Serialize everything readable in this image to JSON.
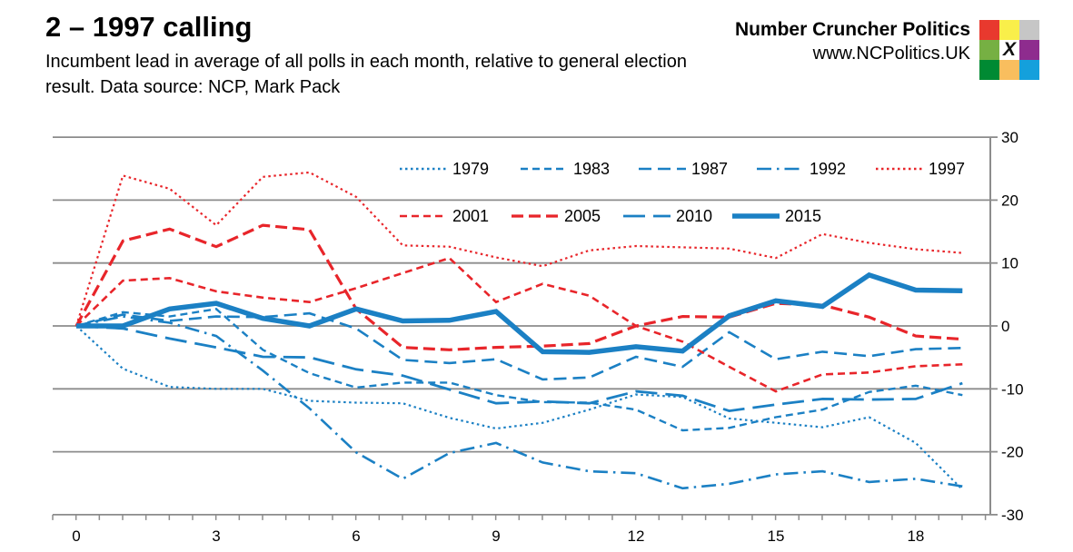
{
  "header": {
    "title": "2 – 1997 calling",
    "subtitle": "Incumbent lead in average of all polls in each month, relative to general election result. Data source: NCP, Mark Pack",
    "brand_name": "Number Cruncher Politics",
    "brand_url": "www.NCPolitics.UK",
    "logo_x": "X",
    "logo_colors": [
      "#e8392e",
      "#f9ef4a",
      "#c6c6c6",
      "#76b043",
      "#ffffff",
      "#8e2c8e",
      "#008a33",
      "#f9be5e",
      "#14a0dc"
    ]
  },
  "colors": {
    "blue": "#1b80c4",
    "red": "#e8252a",
    "grid": "#8c8c8c",
    "axis": "#8c8c8c",
    "text": "#000000"
  },
  "chart_data": {
    "type": "line",
    "title": "",
    "xlabel": "",
    "ylabel": "",
    "x": [
      0,
      1,
      2,
      3,
      4,
      5,
      6,
      7,
      8,
      9,
      10,
      11,
      12,
      13,
      14,
      15,
      16,
      17,
      18,
      19
    ],
    "xlim": [
      0,
      19.6
    ],
    "ylim": [
      -30,
      30
    ],
    "grid": true,
    "legend_position": "top-center",
    "y_ticks": [
      30,
      20,
      10,
      0,
      -10,
      -20,
      -30
    ],
    "y_tick_labels": [
      "30",
      "20",
      "10",
      "0",
      "-10",
      "-20",
      "-30"
    ],
    "x_label_months": [
      0,
      3,
      6,
      9,
      12,
      15,
      18
    ],
    "x_tick_labels": [
      "0",
      "3",
      "6",
      "9",
      "12",
      "15",
      "18"
    ],
    "legend_rows": [
      [
        "1979",
        "1983",
        "1987",
        "1992",
        "1997"
      ],
      [
        "2001",
        "2005",
        "2010",
        "2015"
      ]
    ],
    "series": [
      {
        "name": "1979",
        "color": "#1b80c4",
        "dash": "2.5 3.5",
        "width": 2.2,
        "values": [
          0,
          -6.8,
          -9.7,
          -10.0,
          -10.0,
          -11.9,
          -12.2,
          -12.3,
          -14.6,
          -16.3,
          -15.4,
          -13.3,
          -10.9,
          -11.3,
          -14.7,
          -15.4,
          -16.1,
          -14.5,
          -18.6,
          -26.0
        ]
      },
      {
        "name": "1983",
        "color": "#1b80c4",
        "dash": "8 5",
        "width": 2.4,
        "values": [
          0,
          2.2,
          1.5,
          2.7,
          -3.8,
          -7.5,
          -9.8,
          -9.0,
          -9.0,
          -11.0,
          -12.1,
          -12.2,
          -13.3,
          -16.6,
          -16.2,
          -14.5,
          -13.3,
          -10.5,
          -9.5,
          -11.0
        ]
      },
      {
        "name": "1987",
        "color": "#1b80c4",
        "dash": "14 7",
        "width": 2.6,
        "values": [
          0,
          1.8,
          0.8,
          1.5,
          1.4,
          2.0,
          -0.4,
          -5.4,
          -5.9,
          -5.3,
          -8.5,
          -8.2,
          -4.9,
          -6.5,
          -1.0,
          -5.3,
          -4.1,
          -4.8,
          -3.7,
          -3.5
        ]
      },
      {
        "name": "1992",
        "color": "#1b80c4",
        "dash": "16 6 2.5 6",
        "width": 2.6,
        "values": [
          0,
          1.5,
          0.5,
          -1.6,
          -7.1,
          -13.1,
          -20.1,
          -24.3,
          -20.2,
          -18.6,
          -21.7,
          -23.1,
          -23.4,
          -25.8,
          -25.1,
          -23.6,
          -23.1,
          -24.8,
          -24.3,
          -25.5
        ]
      },
      {
        "name": "1997",
        "color": "#e8252a",
        "dash": "2.5 3.5",
        "width": 2.2,
        "values": [
          0,
          23.9,
          21.8,
          16.0,
          23.7,
          24.4,
          20.5,
          12.8,
          12.6,
          10.9,
          9.5,
          12.0,
          12.7,
          12.5,
          12.3,
          10.8,
          14.6,
          13.2,
          12.2,
          11.6
        ]
      },
      {
        "name": "2001",
        "color": "#e8252a",
        "dash": "8 5",
        "width": 2.6,
        "values": [
          0,
          7.2,
          7.6,
          5.5,
          4.5,
          3.8,
          6.0,
          8.4,
          10.8,
          3.8,
          6.7,
          4.8,
          0.0,
          -2.5,
          -6.5,
          -10.4,
          -7.7,
          -7.4,
          -6.4,
          -6.1
        ]
      },
      {
        "name": "2005",
        "color": "#e8252a",
        "dash": "13 6",
        "width": 3.2,
        "values": [
          0,
          13.5,
          15.4,
          12.6,
          16.0,
          15.3,
          2.7,
          -3.4,
          -3.8,
          -3.4,
          -3.2,
          -2.8,
          0.0,
          1.5,
          1.4,
          3.6,
          3.3,
          1.4,
          -1.6,
          -2.1
        ]
      },
      {
        "name": "2010",
        "color": "#1b80c4",
        "dash": "24 9",
        "width": 2.8,
        "values": [
          0,
          -0.4,
          -2.0,
          -3.4,
          -4.9,
          -5.0,
          -6.9,
          -7.9,
          -10.1,
          -12.3,
          -12.0,
          -12.3,
          -10.4,
          -11.1,
          -13.5,
          -12.5,
          -11.6,
          -11.7,
          -11.6,
          -9.1
        ]
      },
      {
        "name": "2015",
        "color": "#1b80c4",
        "dash": "",
        "width": 5.5,
        "values": [
          0,
          0.0,
          2.7,
          3.6,
          1.2,
          0.0,
          2.7,
          0.8,
          0.9,
          2.3,
          -4.1,
          -4.2,
          -3.3,
          -4.0,
          1.6,
          4.0,
          3.1,
          8.1,
          5.7,
          5.6
        ]
      }
    ]
  }
}
